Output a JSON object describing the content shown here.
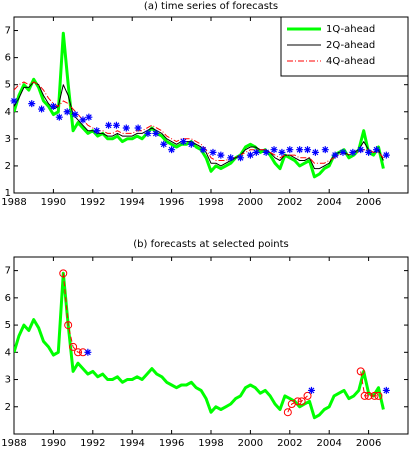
{
  "chart_data": [
    {
      "type": "line",
      "title": "(a) time series of forecasts",
      "x": [
        1988,
        1988.25,
        1988.5,
        1988.75,
        1989,
        1989.25,
        1989.5,
        1989.75,
        1990,
        1990.25,
        1990.5,
        1990.75,
        1991,
        1991.25,
        1991.5,
        1991.75,
        1992,
        1992.25,
        1992.5,
        1992.75,
        1993,
        1993.25,
        1993.5,
        1993.75,
        1994,
        1994.25,
        1994.5,
        1994.75,
        1995,
        1995.25,
        1995.5,
        1995.75,
        1996,
        1996.25,
        1996.5,
        1996.75,
        1997,
        1997.25,
        1997.5,
        1997.75,
        1998,
        1998.25,
        1998.5,
        1998.75,
        1999,
        1999.25,
        1999.5,
        1999.75,
        2000,
        2000.25,
        2000.5,
        2000.75,
        2001,
        2001.25,
        2001.5,
        2001.75,
        2002,
        2002.25,
        2002.5,
        2002.75,
        2003,
        2003.25,
        2003.5,
        2003.75,
        2004,
        2004.25,
        2004.5,
        2004.75,
        2005,
        2005.25,
        2005.5,
        2005.75,
        2006,
        2006.25,
        2006.5,
        2006.75
      ],
      "series": [
        {
          "name": "1Q-ahead",
          "color": "#00ff00",
          "line_style": "solid",
          "line_width": 3,
          "values": [
            4.0,
            4.6,
            5.0,
            4.8,
            5.2,
            4.9,
            4.4,
            4.2,
            3.9,
            4.0,
            6.9,
            5.0,
            3.3,
            3.6,
            3.4,
            3.2,
            3.3,
            3.1,
            3.2,
            3.0,
            3.0,
            3.1,
            2.9,
            3.0,
            3.0,
            3.1,
            3.0,
            3.2,
            3.4,
            3.2,
            3.1,
            2.9,
            2.8,
            2.7,
            2.8,
            2.8,
            2.9,
            2.7,
            2.6,
            2.3,
            1.8,
            2.0,
            1.9,
            2.0,
            2.1,
            2.3,
            2.4,
            2.7,
            2.8,
            2.7,
            2.5,
            2.6,
            2.4,
            2.1,
            1.9,
            2.4,
            2.3,
            2.2,
            2.0,
            2.1,
            2.2,
            1.6,
            1.7,
            1.9,
            2.0,
            2.4,
            2.5,
            2.6,
            2.3,
            2.4,
            2.6,
            3.3,
            2.5,
            2.4,
            2.7,
            1.9
          ]
        },
        {
          "name": "2Q-ahead",
          "color": "#000000",
          "line_style": "solid",
          "line_width": 1,
          "values": [
            4.2,
            4.5,
            4.9,
            4.9,
            5.1,
            5.0,
            4.6,
            4.3,
            4.1,
            4.2,
            5.0,
            4.6,
            3.9,
            3.7,
            3.5,
            3.3,
            3.3,
            3.2,
            3.2,
            3.1,
            3.1,
            3.2,
            3.1,
            3.1,
            3.1,
            3.2,
            3.2,
            3.3,
            3.4,
            3.3,
            3.2,
            3.0,
            2.9,
            2.8,
            2.9,
            2.9,
            2.9,
            2.8,
            2.7,
            2.5,
            2.1,
            2.1,
            2.0,
            2.1,
            2.2,
            2.3,
            2.4,
            2.6,
            2.7,
            2.7,
            2.6,
            2.6,
            2.5,
            2.3,
            2.2,
            2.4,
            2.4,
            2.3,
            2.2,
            2.2,
            2.3,
            1.9,
            1.9,
            2.0,
            2.1,
            2.4,
            2.5,
            2.5,
            2.4,
            2.5,
            2.6,
            2.9,
            2.6,
            2.5,
            2.6,
            2.2
          ]
        },
        {
          "name": "4Q-ahead",
          "color": "#ff0000",
          "line_style": "dashdot",
          "line_width": 1,
          "values": [
            4.8,
            5.0,
            5.1,
            5.0,
            5.1,
            5.0,
            4.8,
            4.5,
            4.3,
            4.2,
            4.4,
            4.3,
            4.1,
            3.9,
            3.7,
            3.5,
            3.4,
            3.3,
            3.3,
            3.2,
            3.2,
            3.3,
            3.2,
            3.2,
            3.2,
            3.3,
            3.3,
            3.4,
            3.5,
            3.4,
            3.3,
            3.1,
            3.0,
            2.9,
            3.0,
            3.0,
            3.0,
            2.9,
            2.8,
            2.6,
            2.3,
            2.2,
            2.2,
            2.2,
            2.3,
            2.3,
            2.4,
            2.5,
            2.6,
            2.6,
            2.6,
            2.6,
            2.5,
            2.4,
            2.3,
            2.4,
            2.4,
            2.4,
            2.3,
            2.3,
            2.3,
            2.1,
            2.1,
            2.1,
            2.2,
            2.3,
            2.4,
            2.5,
            2.4,
            2.5,
            2.5,
            2.6,
            2.6,
            2.5,
            2.5,
            2.3
          ]
        },
        {
          "color": "#0000ff",
          "line_style": "none",
          "marker": "star",
          "x": [
            1988,
            1988.9,
            1989.4,
            1990,
            1990.3,
            1990.7,
            1991.1,
            1991.5,
            1991.8,
            1992.2,
            1992.8,
            1993.2,
            1993.7,
            1994.3,
            1994.8,
            1995.2,
            1995.6,
            1996,
            1996.6,
            1997,
            1997.6,
            1998.1,
            1998.5,
            1999,
            1999.5,
            2000,
            2000.3,
            2000.8,
            2001.2,
            2001.6,
            2002,
            2002.5,
            2002.9,
            2003.3,
            2003.8,
            2004.3,
            2004.7,
            2005.2,
            2005.6,
            2006,
            2006.4,
            2006.9
          ],
          "values": [
            4.4,
            4.3,
            4.1,
            4.2,
            3.8,
            4.0,
            3.9,
            3.7,
            3.8,
            3.3,
            3.5,
            3.5,
            3.4,
            3.4,
            3.2,
            3.2,
            2.8,
            2.6,
            2.9,
            2.8,
            2.6,
            2.5,
            2.4,
            2.3,
            2.3,
            2.4,
            2.5,
            2.5,
            2.6,
            2.5,
            2.6,
            2.6,
            2.6,
            2.5,
            2.6,
            2.4,
            2.5,
            2.5,
            2.6,
            2.5,
            2.6,
            2.4
          ]
        }
      ],
      "xlim": [
        1988,
        2008
      ],
      "xticks": [
        1988,
        1990,
        1992,
        1994,
        1996,
        1998,
        2000,
        2002,
        2004,
        2006
      ],
      "ylim": [
        1,
        7.5
      ],
      "yticks": [
        1,
        2,
        3,
        4,
        5,
        6,
        7
      ],
      "legend": "upper right"
    },
    {
      "type": "line",
      "title": "(b) forecasts at selected points",
      "x": [
        1988,
        1988.25,
        1988.5,
        1988.75,
        1989,
        1989.25,
        1989.5,
        1989.75,
        1990,
        1990.25,
        1990.5,
        1990.75,
        1991,
        1991.25,
        1991.5,
        1991.75,
        1992,
        1992.25,
        1992.5,
        1992.75,
        1993,
        1993.25,
        1993.5,
        1993.75,
        1994,
        1994.25,
        1994.5,
        1994.75,
        1995,
        1995.25,
        1995.5,
        1995.75,
        1996,
        1996.25,
        1996.5,
        1996.75,
        1997,
        1997.25,
        1997.5,
        1997.75,
        1998,
        1998.25,
        1998.5,
        1998.75,
        1999,
        1999.25,
        1999.5,
        1999.75,
        2000,
        2000.25,
        2000.5,
        2000.75,
        2001,
        2001.25,
        2001.5,
        2001.75,
        2002,
        2002.25,
        2002.5,
        2002.75,
        2003,
        2003.25,
        2003.5,
        2003.75,
        2004,
        2004.25,
        2004.5,
        2004.75,
        2005,
        2005.25,
        2005.5,
        2005.75,
        2006,
        2006.25,
        2006.5,
        2006.75
      ],
      "series": [
        {
          "color": "#00ff00",
          "line_style": "solid",
          "line_width": 3,
          "values": [
            4.0,
            4.6,
            5.0,
            4.8,
            5.2,
            4.9,
            4.4,
            4.2,
            3.9,
            4.0,
            6.9,
            5.0,
            3.3,
            3.6,
            3.4,
            3.2,
            3.3,
            3.1,
            3.2,
            3.0,
            3.0,
            3.1,
            2.9,
            3.0,
            3.0,
            3.1,
            3.0,
            3.2,
            3.4,
            3.2,
            3.1,
            2.9,
            2.8,
            2.7,
            2.8,
            2.8,
            2.9,
            2.7,
            2.6,
            2.3,
            1.8,
            2.0,
            1.9,
            2.0,
            2.1,
            2.3,
            2.4,
            2.7,
            2.8,
            2.7,
            2.5,
            2.6,
            2.4,
            2.1,
            1.9,
            2.4,
            2.3,
            2.2,
            2.0,
            2.1,
            2.2,
            1.6,
            1.7,
            1.9,
            2.0,
            2.4,
            2.5,
            2.6,
            2.3,
            2.4,
            2.6,
            3.3,
            2.5,
            2.4,
            2.7,
            1.9
          ]
        },
        {
          "color": "#ff0000",
          "line_style": "dashed",
          "line_width": 1,
          "marker": "circle",
          "x": [
            1990.5,
            1990.75,
            1991,
            1991.25,
            1991.5,
            null,
            2001.9,
            2002.1,
            2002.4,
            2002.6,
            2002.9,
            null,
            2005.6,
            2005.8,
            2006,
            2006.3,
            2006.5
          ],
          "values": [
            6.9,
            5.0,
            4.2,
            4.0,
            4.0,
            null,
            1.8,
            2.1,
            2.2,
            2.2,
            2.4,
            null,
            3.3,
            2.4,
            2.4,
            2.4,
            2.4
          ]
        },
        {
          "color": "#0000ff",
          "line_style": "none",
          "marker": "star",
          "x": [
            1991.75,
            2003.1,
            2006.9
          ],
          "values": [
            4.0,
            2.6,
            2.6
          ]
        }
      ],
      "xlim": [
        1988,
        2008
      ],
      "xticks": [
        1988,
        1990,
        1992,
        1994,
        1996,
        1998,
        2000,
        2002,
        2004,
        2006
      ],
      "ylim": [
        1,
        7.5
      ],
      "yticks": [
        2,
        3,
        4,
        5,
        6,
        7
      ]
    }
  ]
}
